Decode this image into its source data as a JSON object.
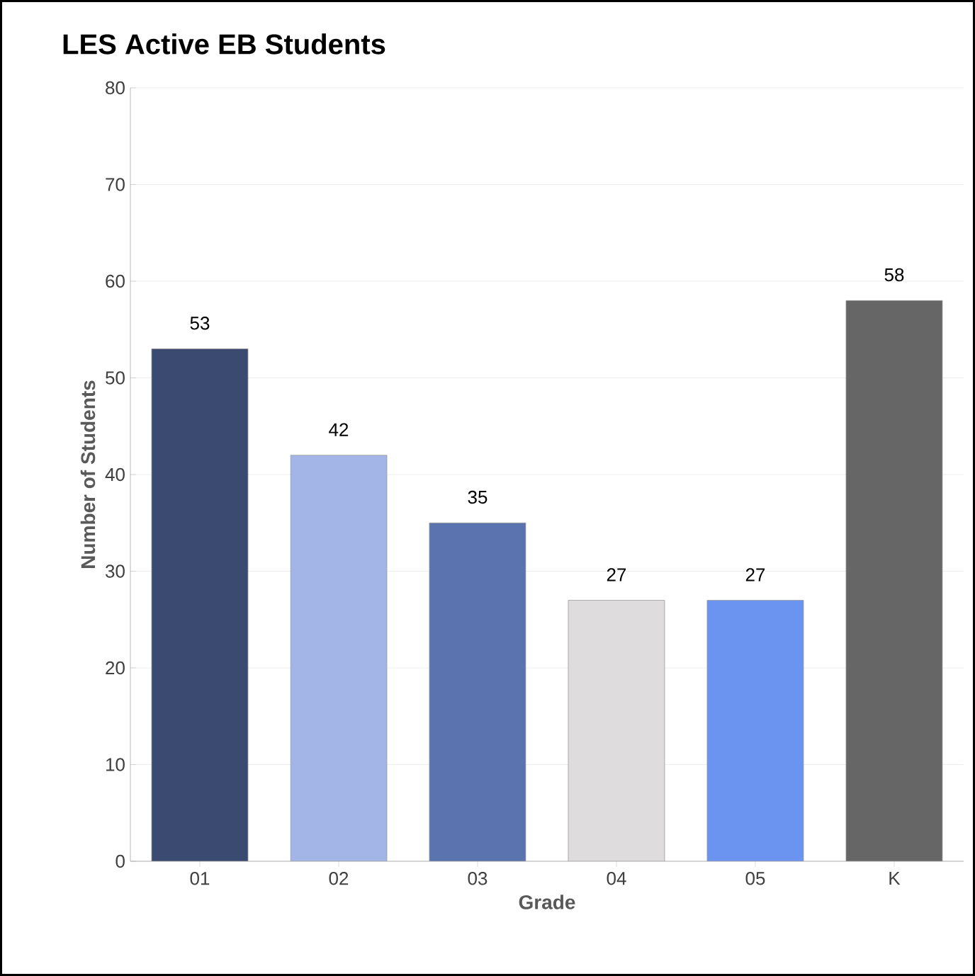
{
  "chart_data": {
    "type": "bar",
    "title": "LES Active EB Students",
    "xlabel": "Grade",
    "ylabel": "Number of Students",
    "categories": [
      "01",
      "02",
      "03",
      "04",
      "05",
      "K"
    ],
    "values": [
      53,
      42,
      35,
      27,
      27,
      58
    ],
    "colors": [
      "#3a4a70",
      "#a3b5e6",
      "#5b74b0",
      "#dedcdd",
      "#6b93f0",
      "#666666"
    ],
    "ylim": [
      0,
      80
    ],
    "yticks": [
      0,
      10,
      20,
      30,
      40,
      50,
      60,
      70,
      80
    ],
    "grid": "y",
    "data_labels": true
  }
}
